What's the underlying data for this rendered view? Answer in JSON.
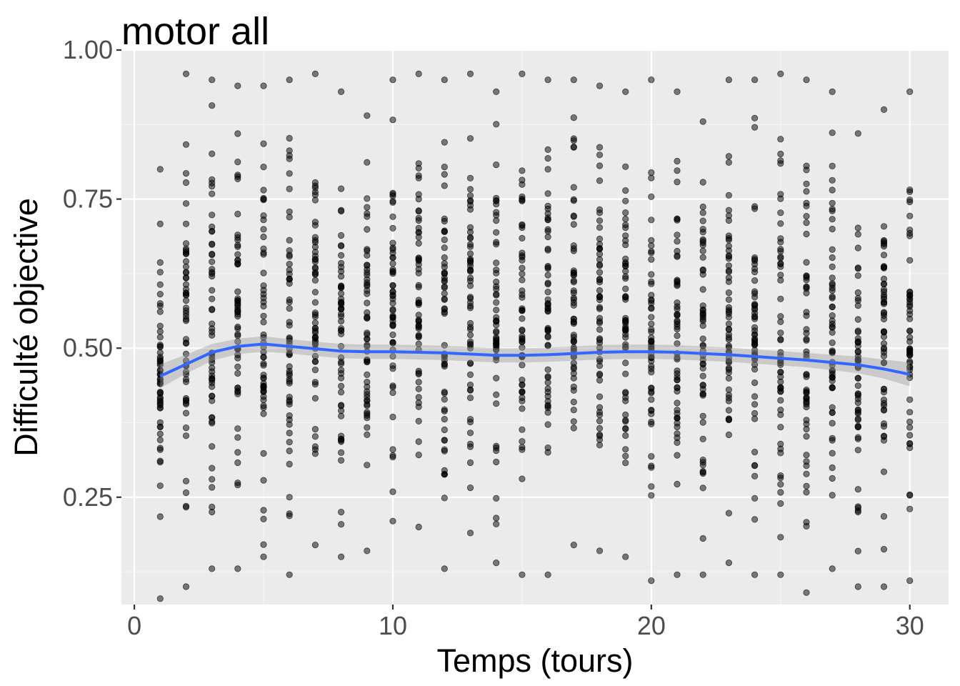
{
  "chart_data": {
    "type": "scatter",
    "title": "motor all",
    "xlabel": "Temps (tours)",
    "ylabel": "Difficulté objective",
    "xlim": [
      -0.5,
      31.5
    ],
    "ylim": [
      0.07,
      1.0
    ],
    "xticks": [
      0,
      10,
      20,
      30
    ],
    "xtick_labels": [
      "0",
      "10",
      "20",
      "30"
    ],
    "yticks": [
      0.25,
      0.5,
      0.75,
      1.0
    ],
    "ytick_labels": [
      "0.25",
      "0.50",
      "0.75",
      "1.00"
    ],
    "grid": true,
    "x_values": [
      1,
      2,
      3,
      4,
      5,
      6,
      7,
      8,
      9,
      10,
      11,
      12,
      13,
      14,
      15,
      16,
      17,
      18,
      19,
      20,
      21,
      22,
      23,
      24,
      25,
      26,
      27,
      28,
      29,
      30
    ],
    "point_min": [
      0.08,
      0.1,
      0.13,
      0.13,
      0.15,
      0.12,
      0.17,
      0.15,
      0.16,
      0.21,
      0.2,
      0.13,
      0.19,
      0.14,
      0.12,
      0.12,
      0.17,
      0.16,
      0.15,
      0.11,
      0.12,
      0.12,
      0.14,
      0.12,
      0.12,
      0.09,
      0.13,
      0.1,
      0.1,
      0.11
    ],
    "point_max": [
      0.8,
      0.96,
      0.95,
      0.94,
      0.94,
      0.95,
      0.96,
      0.93,
      0.89,
      0.95,
      0.96,
      0.95,
      0.96,
      0.93,
      0.96,
      0.95,
      0.95,
      0.94,
      0.93,
      0.95,
      0.93,
      0.88,
      0.95,
      0.95,
      0.96,
      0.95,
      0.93,
      0.86,
      0.9,
      0.93
    ],
    "series": [
      {
        "type": "smooth",
        "x": [
          1,
          2,
          3,
          4,
          5,
          6,
          7,
          8,
          9,
          10,
          11,
          12,
          13,
          14,
          15,
          16,
          17,
          18,
          19,
          20,
          21,
          22,
          23,
          24,
          25,
          26,
          27,
          28,
          29,
          30
        ],
        "y": [
          0.453,
          0.473,
          0.493,
          0.503,
          0.507,
          0.503,
          0.499,
          0.495,
          0.494,
          0.494,
          0.493,
          0.492,
          0.49,
          0.488,
          0.488,
          0.489,
          0.491,
          0.493,
          0.494,
          0.494,
          0.493,
          0.491,
          0.489,
          0.486,
          0.483,
          0.48,
          0.476,
          0.472,
          0.465,
          0.456
        ],
        "ci_halfwidth": [
          0.02,
          0.016,
          0.014,
          0.013,
          0.013,
          0.012,
          0.012,
          0.012,
          0.012,
          0.012,
          0.012,
          0.012,
          0.012,
          0.012,
          0.012,
          0.012,
          0.012,
          0.012,
          0.012,
          0.012,
          0.012,
          0.012,
          0.012,
          0.012,
          0.012,
          0.012,
          0.013,
          0.014,
          0.016,
          0.02
        ]
      }
    ],
    "colors": {
      "panel": "#ebebeb",
      "grid_major": "#ffffff",
      "grid_minor": "#f5f5f5",
      "points": "#000000",
      "smooth_line": "#3366ff",
      "ci_band": "#999999",
      "tick_text": "#4d4d4d"
    }
  }
}
